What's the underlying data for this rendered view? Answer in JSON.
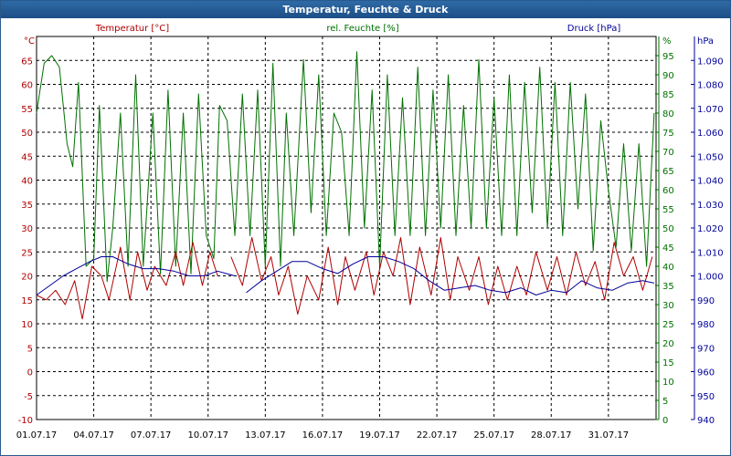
{
  "window": {
    "title": "Temperatur, Feuchte & Druck"
  },
  "colors": {
    "temperature": "#b00000",
    "humidity": "#007000",
    "pressure": "#00009a",
    "frame": "#2a5a8c",
    "grid": "#000000"
  },
  "chart_data": {
    "type": "line",
    "title": "Temperatur, Feuchte & Druck",
    "legend": [
      "Temperatur [°C]",
      "rel. Feuchte [%]",
      "Druck [hPa]"
    ],
    "axes": {
      "temperature": {
        "unit": "°C",
        "range": [
          -10,
          70
        ],
        "ticks": [
          "65",
          "60",
          "55",
          "50",
          "45",
          "40",
          "35",
          "30",
          "25",
          "20",
          "15",
          "10",
          "5",
          "0",
          "-5",
          "-10"
        ]
      },
      "humidity": {
        "unit": "%",
        "range": [
          0,
          100
        ],
        "ticks": [
          "95",
          "90",
          "85",
          "80",
          "75",
          "70",
          "65",
          "60",
          "55",
          "50",
          "45",
          "40",
          "35",
          "30",
          "25",
          "20",
          "15",
          "10",
          "5",
          "0"
        ]
      },
      "pressure": {
        "unit": "hPa",
        "range": [
          940,
          1100
        ],
        "ticks": [
          "1.090",
          "1.080",
          "1.070",
          "1.060",
          "1.050",
          "1.040",
          "1.030",
          "1.020",
          "1.010",
          "1.000",
          "990",
          "980",
          "970",
          "960",
          "950",
          "940"
        ]
      }
    },
    "x_range_days": [
      0,
      32.5
    ],
    "x_labels": [
      "01.07.17",
      "04.07.17",
      "07.07.17",
      "10.07.17",
      "13.07.17",
      "16.07.17",
      "19.07.17",
      "22.07.17",
      "25.07.17",
      "28.07.17",
      "31.07.17"
    ],
    "series": [
      {
        "name": "Temperatur [°C]",
        "unit": "°C",
        "x": [
          0,
          0.5,
          1,
          1.5,
          2,
          2.4,
          2.9,
          3.4,
          3.8,
          4.4,
          4.9,
          5.3,
          5.8,
          6.2,
          6.8,
          7.3,
          7.7,
          8.2,
          8.7,
          9.1,
          9.5,
          10.2,
          10.8,
          11.3,
          11.8,
          12.3,
          12.7,
          13.2,
          13.7,
          14.2,
          14.8,
          15.3,
          15.8,
          16.2,
          16.7,
          17.3,
          17.7,
          18.2,
          18.7,
          19.1,
          19.6,
          20.1,
          20.7,
          21.2,
          21.7,
          22.1,
          22.7,
          23.2,
          23.7,
          24.2,
          24.7,
          25.2,
          25.7,
          26.2,
          26.8,
          27.3,
          27.8,
          28.3,
          28.8,
          29.3,
          29.8,
          30.3,
          30.8,
          31.3,
          31.8,
          32.3
        ],
        "values": [
          16,
          15,
          17,
          14,
          19,
          11,
          22,
          20,
          15,
          26,
          15,
          25,
          17,
          22,
          18,
          25,
          18,
          27,
          18,
          25,
          20,
          24,
          18,
          28,
          19,
          24,
          16,
          22,
          12,
          20,
          15,
          26,
          14,
          24,
          17,
          25,
          16,
          25,
          20,
          28,
          14,
          26,
          16,
          28,
          15,
          24,
          17,
          24,
          14,
          22,
          15,
          22,
          16,
          25,
          17,
          24,
          16,
          25,
          18,
          23,
          15,
          27,
          20,
          24,
          17,
          24
        ],
        "gap_after_index": 20
      },
      {
        "name": "rel. Feuchte [%]",
        "unit": "%",
        "x": [
          0,
          0.4,
          0.8,
          1.2,
          1.6,
          1.9,
          2.2,
          2.6,
          3,
          3.3,
          3.7,
          4,
          4.4,
          4.8,
          5.2,
          5.6,
          6.1,
          6.5,
          6.9,
          7.3,
          7.7,
          8.1,
          8.5,
          8.9,
          9.3,
          9.6,
          10,
          10.4,
          10.8,
          11.2,
          11.6,
          12,
          12.4,
          12.8,
          13.1,
          13.5,
          14,
          14.4,
          14.8,
          15.2,
          15.6,
          16,
          16.4,
          16.8,
          17.2,
          17.6,
          18,
          18.4,
          18.8,
          19.2,
          19.6,
          20,
          20.4,
          20.8,
          21.2,
          21.6,
          22,
          22.4,
          22.8,
          23.2,
          23.6,
          24,
          24.4,
          24.8,
          25.2,
          25.6,
          26,
          26.4,
          26.8,
          27.2,
          27.6,
          28,
          28.4,
          28.8,
          29.2,
          29.6,
          30,
          30.4,
          30.8,
          31.2,
          31.6,
          32,
          32.4
        ],
        "values": [
          80,
          93,
          95,
          92,
          72,
          66,
          88,
          40,
          42,
          82,
          36,
          50,
          80,
          40,
          90,
          40,
          80,
          38,
          86,
          40,
          80,
          38,
          85,
          48,
          42,
          82,
          78,
          48,
          85,
          48,
          86,
          40,
          93,
          40,
          80,
          48,
          94,
          54,
          90,
          48,
          80,
          75,
          48,
          96,
          50,
          86,
          40,
          90,
          48,
          84,
          48,
          92,
          48,
          86,
          50,
          90,
          48,
          82,
          50,
          94,
          50,
          84,
          48,
          90,
          48,
          88,
          54,
          92,
          50,
          88,
          48,
          88,
          55,
          85,
          44,
          78,
          60,
          45,
          72,
          44,
          72,
          40,
          80
        ]
      },
      {
        "name": "Druck [hPa]",
        "unit": "hPa",
        "x": [
          0,
          0.7,
          1.4,
          2.1,
          2.8,
          3.4,
          4,
          4.8,
          5.6,
          6.4,
          7.2,
          8,
          8.8,
          9.5,
          10.4,
          11,
          11.8,
          12.6,
          13.4,
          14.2,
          15,
          15.8,
          16.6,
          17.4,
          18.2,
          19,
          19.8,
          20.6,
          21.4,
          22.2,
          23,
          23.8,
          24.6,
          25.4,
          26.2,
          27,
          27.8,
          28.6,
          29.4,
          30.2,
          31,
          31.8,
          32.4
        ],
        "values": [
          992,
          996,
          1000,
          1003,
          1006,
          1008,
          1008,
          1005,
          1003,
          1003,
          1002,
          1000,
          1000,
          1002,
          1000,
          993,
          998,
          1002,
          1006,
          1006,
          1003,
          1001,
          1005,
          1008,
          1008,
          1006,
          1003,
          998,
          994,
          995,
          996,
          994,
          993,
          995,
          992,
          994,
          993,
          998,
          995,
          994,
          997,
          998,
          997
        ],
        "gap_after_index": 14
      }
    ]
  }
}
